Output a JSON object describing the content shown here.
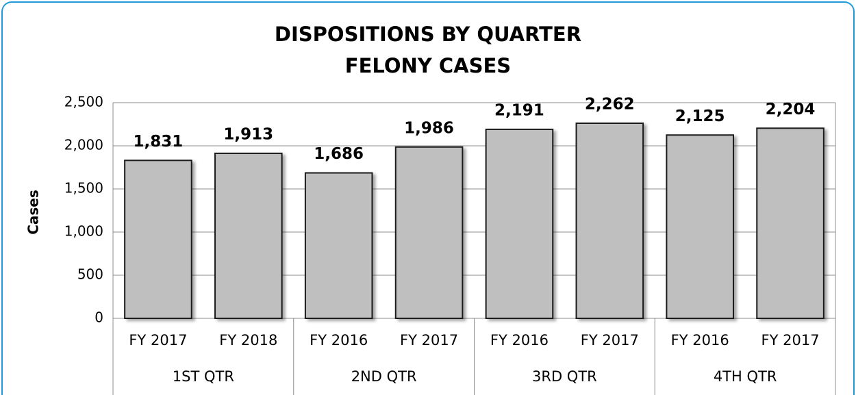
{
  "chart_data": {
    "type": "bar",
    "title": [
      "DISPOSITIONS BY QUARTER",
      "FELONY CASES"
    ],
    "y_label": "Cases",
    "categories": [
      "FY 2017",
      "FY 2018",
      "FY 2016",
      "FY 2017",
      "FY 2016",
      "FY 2017",
      "FY 2016",
      "FY 2017"
    ],
    "groups": [
      "1ST QTR",
      "2ND QTR",
      "3RD QTR",
      "4TH QTR"
    ],
    "values": [
      1831,
      1913,
      1686,
      1986,
      2191,
      2262,
      2125,
      2204
    ],
    "value_labels": [
      "1,831",
      "1,913",
      "1,686",
      "1,986",
      "2,191",
      "2,262",
      "2,125",
      "2,204"
    ],
    "color": "#bfbfbf",
    "ylim": [
      0,
      2500
    ],
    "yticks": [
      0,
      500,
      {
        "value": 1000,
        "label": "1,000"
      },
      {
        "value": 1500,
        "label": "1,500"
      },
      {
        "value": 2000,
        "label": "2,000"
      },
      {
        "value": 2500,
        "label": "2,500"
      }
    ],
    "grid": true
  }
}
